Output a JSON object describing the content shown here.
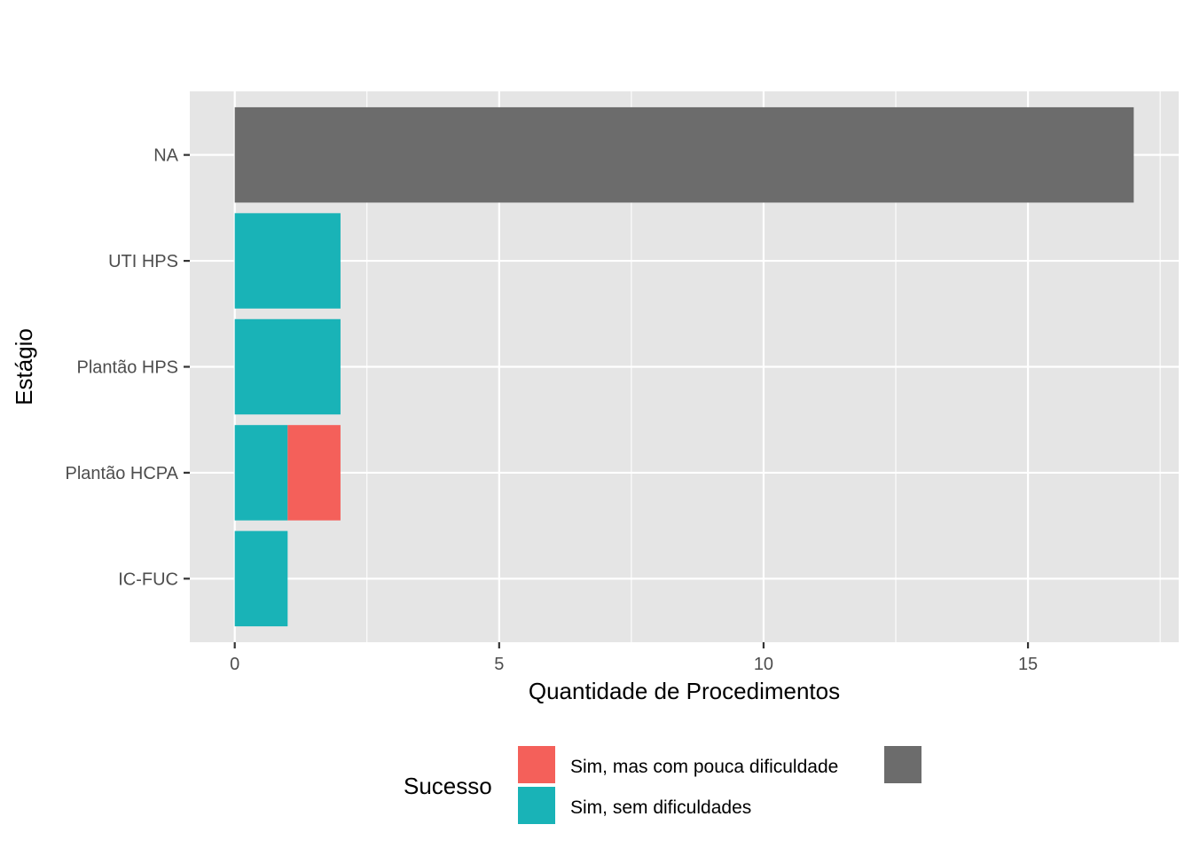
{
  "chart_data": {
    "type": "bar",
    "orientation": "horizontal",
    "stacked": true,
    "categories": [
      "NA",
      "UTI HPS",
      "Plantão HPS",
      "Plantão HCPA",
      "IC-FUC"
    ],
    "series": [
      {
        "name": "Sim, sem dificuldades",
        "color": "#19B3B7",
        "values": [
          0,
          2,
          2,
          1,
          1
        ]
      },
      {
        "name": "Sim, mas com pouca dificuldade",
        "color": "#F4605A",
        "values": [
          0,
          0,
          0,
          1,
          0
        ]
      },
      {
        "name": "",
        "color": "#6C6C6C",
        "values": [
          17,
          0,
          0,
          0,
          0
        ]
      }
    ],
    "xlabel": "Quantidade de Procedimentos",
    "ylabel": "Estágio",
    "xlim": [
      -0.85,
      17.85
    ],
    "xticks": [
      0,
      5,
      10,
      15
    ],
    "xtick_labels": [
      "0",
      "5",
      "10",
      "15"
    ],
    "grid": true,
    "panel_background": "#E5E5E5",
    "grid_color": "#FFFFFF",
    "legend": {
      "title": "Sucesso",
      "position": "bottom",
      "entries": [
        {
          "label": "Sim, mas com pouca dificuldade",
          "color": "#F4605A"
        },
        {
          "label": "Sim, sem dificuldades",
          "color": "#19B3B7"
        },
        {
          "label": "",
          "color": "#6C6C6C"
        }
      ]
    }
  }
}
